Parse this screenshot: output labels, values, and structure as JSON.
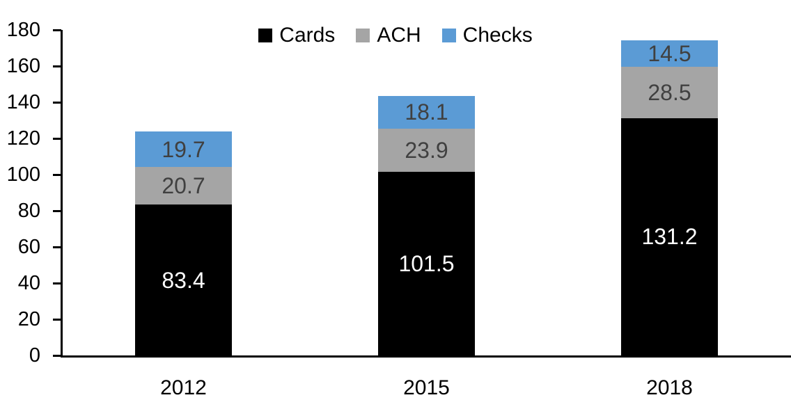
{
  "chart_data": {
    "type": "bar",
    "stacked": true,
    "title": "",
    "categories": [
      "2012",
      "2015",
      "2018"
    ],
    "series": [
      {
        "name": "Cards",
        "color": "#000000",
        "label_color": "#ffffff",
        "values": [
          83.4,
          101.5,
          131.2
        ]
      },
      {
        "name": "ACH",
        "color": "#a5a5a5",
        "label_color": "#404040",
        "values": [
          20.7,
          23.9,
          28.5
        ]
      },
      {
        "name": "Checks",
        "color": "#5b9bd5",
        "label_color": "#404040",
        "values": [
          19.7,
          18.1,
          14.5
        ]
      }
    ],
    "totals": [
      123.8,
      143.5,
      174.2
    ],
    "ylim": [
      0,
      180
    ],
    "ytick_step": 20,
    "ytick_labels": [
      "0",
      "20",
      "40",
      "60",
      "80",
      "100",
      "120",
      "140",
      "160",
      "180"
    ],
    "value_decimals": 1,
    "legend_position": "top-center",
    "grid": false,
    "axis_color": "#000000"
  }
}
